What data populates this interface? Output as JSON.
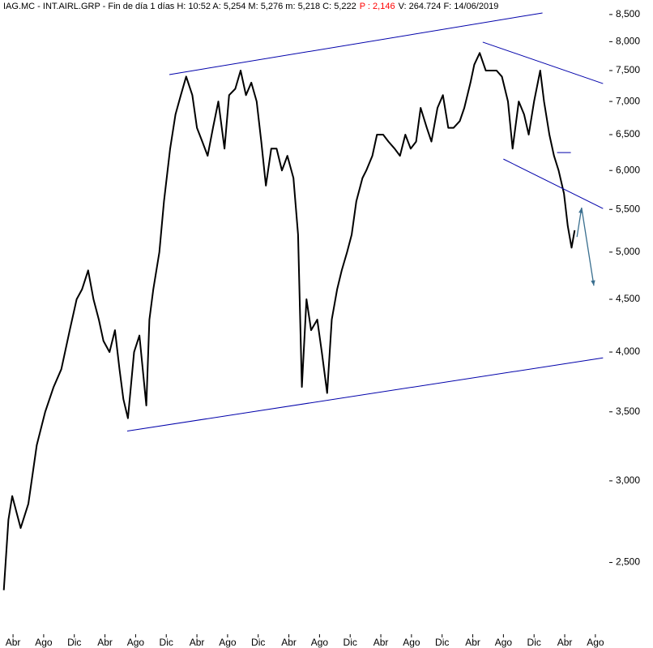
{
  "chart_data": {
    "type": "line",
    "title_parts": [
      {
        "text": "IAG.MC - INT.AIRL.GRP - Fin de día 1 días  H: 10:52  A: 5,254  M: 5,276  m: 5,218  C: 5,222",
        "color": "#000000"
      },
      {
        "text": "P : 2,146",
        "color": "#ff0000"
      },
      {
        "text": "V: 264.724  F: 14/06/2019",
        "color": "#000000"
      }
    ],
    "log_scale": true,
    "grid": false,
    "xlim": [
      -1.7,
      77.6
    ],
    "xticks": [
      {
        "value": 0,
        "label": "Abr"
      },
      {
        "value": 4,
        "label": "Ago"
      },
      {
        "value": 8,
        "label": "Dic"
      },
      {
        "value": 12,
        "label": "Abr"
      },
      {
        "value": 16,
        "label": "Ago"
      },
      {
        "value": 20,
        "label": "Dic"
      },
      {
        "value": 24,
        "label": "Abr"
      },
      {
        "value": 28,
        "label": "Ago"
      },
      {
        "value": 32,
        "label": "Dic"
      },
      {
        "value": 36,
        "label": "Abr"
      },
      {
        "value": 40,
        "label": "Ago"
      },
      {
        "value": 44,
        "label": "Dic"
      },
      {
        "value": 48,
        "label": "Abr"
      },
      {
        "value": 52,
        "label": "Ago"
      },
      {
        "value": 56,
        "label": "Dic"
      },
      {
        "value": 60,
        "label": "Abr"
      },
      {
        "value": 64,
        "label": "Ago"
      },
      {
        "value": 68,
        "label": "Dic"
      },
      {
        "value": 72,
        "label": "Abr"
      },
      {
        "value": 76,
        "label": "Ago"
      }
    ],
    "ylim": [
      2130,
      8780
    ],
    "yticks": [
      {
        "value": 2500,
        "label": "2,500"
      },
      {
        "value": 3000,
        "label": "3,000"
      },
      {
        "value": 3500,
        "label": "3,500"
      },
      {
        "value": 4000,
        "label": "4,000"
      },
      {
        "value": 4500,
        "label": "4,500"
      },
      {
        "value": 5000,
        "label": "5,000"
      },
      {
        "value": 5500,
        "label": "5,500"
      },
      {
        "value": 6000,
        "label": "6,000"
      },
      {
        "value": 6500,
        "label": "6,500"
      },
      {
        "value": 7000,
        "label": "7,000"
      },
      {
        "value": 7500,
        "label": "7,500"
      },
      {
        "value": 8000,
        "label": "8,000"
      },
      {
        "value": 8500,
        "label": "8,500"
      }
    ],
    "series": [
      {
        "color": "#000000",
        "x": [
          -1.2,
          -0.6,
          -0.1,
          1.0,
          2.0,
          3.1,
          4.2,
          5.3,
          6.3,
          7.4,
          8.3,
          9.0,
          9.8,
          10.5,
          11.2,
          11.8,
          12.6,
          13.3,
          13.9,
          14.4,
          15.0,
          15.8,
          16.5,
          17.4,
          17.8,
          18.3,
          19.1,
          19.7,
          20.5,
          21.2,
          21.9,
          22.6,
          23.4,
          24.0,
          24.7,
          25.4,
          26.1,
          26.8,
          27.6,
          28.2,
          29.0,
          29.7,
          30.4,
          31.1,
          31.8,
          32.4,
          33.0,
          33.7,
          34.4,
          35.1,
          35.8,
          36.6,
          37.2,
          37.7,
          38.3,
          38.9,
          39.7,
          40.3,
          41.0,
          41.6,
          42.3,
          42.9,
          43.6,
          44.2,
          44.8,
          45.6,
          46.1,
          46.9,
          47.5,
          48.3,
          49.0,
          49.8,
          50.5,
          51.2,
          51.9,
          52.6,
          53.2,
          54.0,
          54.6,
          55.4,
          56.1,
          56.8,
          57.5,
          58.3,
          58.9,
          59.7,
          60.2,
          60.9,
          61.7,
          62.4,
          63.1,
          63.8,
          64.6,
          65.2,
          66.0,
          66.7,
          67.3,
          68.0,
          68.8,
          69.3,
          70.0,
          70.6,
          71.2,
          71.9,
          72.4,
          72.9,
          73.3
        ],
        "values": [
          2350,
          2750,
          2900,
          2700,
          2850,
          3250,
          3500,
          3700,
          3850,
          4200,
          4500,
          4600,
          4800,
          4500,
          4300,
          4100,
          4000,
          4200,
          3850,
          3600,
          3450,
          4000,
          4150,
          3550,
          4300,
          4600,
          5000,
          5600,
          6300,
          6800,
          7100,
          7400,
          7100,
          6600,
          6400,
          6200,
          6600,
          7000,
          6300,
          7100,
          7200,
          7500,
          7100,
          7300,
          7000,
          6400,
          5800,
          6300,
          6300,
          6000,
          6200,
          5900,
          5200,
          3700,
          4500,
          4200,
          4300,
          4000,
          3650,
          4300,
          4600,
          4800,
          5000,
          5200,
          5600,
          5900,
          6000,
          6200,
          6500,
          6500,
          6400,
          6300,
          6200,
          6500,
          6300,
          6400,
          6900,
          6600,
          6400,
          6900,
          7100,
          6600,
          6600,
          6700,
          6900,
          7300,
          7600,
          7800,
          7500,
          7500,
          7500,
          7400,
          7000,
          6300,
          7000,
          6800,
          6500,
          7000,
          7500,
          7000,
          6500,
          6200,
          6000,
          5700,
          5300,
          5050,
          5250
        ]
      }
    ],
    "trendlines": [
      {
        "color": "#0000aa",
        "x": [
          20.4,
          69.1
        ],
        "y": [
          7433,
          8530
        ]
      },
      {
        "color": "#0000aa",
        "x": [
          14.9,
          77.0
        ],
        "y": [
          3353,
          3948
        ]
      },
      {
        "color": "#0000aa",
        "x": [
          61.3,
          77.0
        ],
        "y": [
          7992,
          7285
        ]
      },
      {
        "color": "#0000aa",
        "x": [
          64.0,
          77.0
        ],
        "y": [
          6155,
          5511
        ]
      },
      {
        "color": "#0000aa",
        "x": [
          71.0,
          72.8
        ],
        "y": [
          6245,
          6245
        ]
      }
    ],
    "arrows": [
      {
        "color": "#3a6f8f",
        "x": [
          73.6,
          74.2
        ],
        "y": [
          5172,
          5521
        ]
      },
      {
        "color": "#3a6f8f",
        "x": [
          74.2,
          75.8
        ],
        "y": [
          5521,
          4639
        ]
      }
    ]
  }
}
